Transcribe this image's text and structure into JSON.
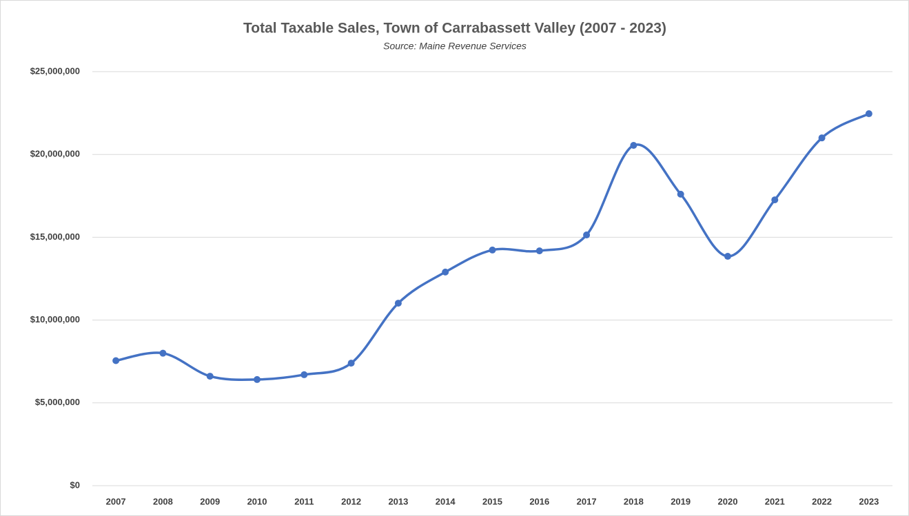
{
  "chart_data": {
    "type": "line",
    "title": "Total Taxable Sales, Town of Carrabassett Valley (2007 - 2023)",
    "subtitle": "Source: Maine Revenue Services",
    "categories": [
      "2007",
      "2008",
      "2009",
      "2010",
      "2011",
      "2012",
      "2013",
      "2014",
      "2015",
      "2016",
      "2017",
      "2018",
      "2019",
      "2020",
      "2021",
      "2022",
      "2023"
    ],
    "series": [
      {
        "name": "Total Taxable Sales",
        "color": "#4472c4",
        "values": [
          7550000,
          8000000,
          6610000,
          6410000,
          6700000,
          7400000,
          11020000,
          12900000,
          14230000,
          14180000,
          15140000,
          20550000,
          17600000,
          13850000,
          17260000,
          21000000,
          22460000
        ]
      }
    ],
    "ylim": [
      0,
      25000000
    ],
    "yticks": [
      {
        "value": 0,
        "label": "$0"
      },
      {
        "value": 5000000,
        "label": "$5,000,000"
      },
      {
        "value": 10000000,
        "label": "$10,000,000"
      },
      {
        "value": 15000000,
        "label": "$15,000,000"
      },
      {
        "value": 20000000,
        "label": "$20,000,000"
      },
      {
        "value": 25000000,
        "label": "$25,000,000"
      }
    ],
    "grid": true,
    "smooth": true
  }
}
